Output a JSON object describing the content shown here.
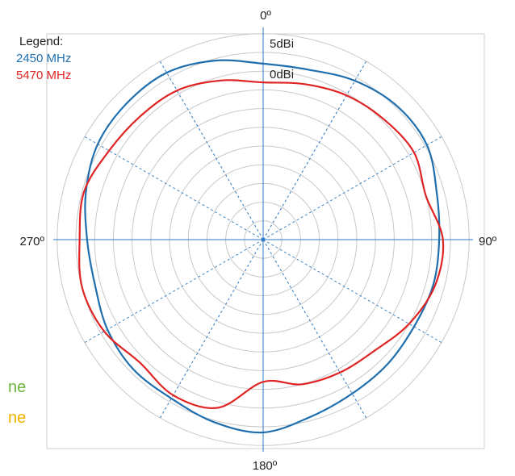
{
  "chart_data": {
    "type": "polar-line",
    "angle_labels": [
      "0º",
      "90º",
      "180º",
      "270º"
    ],
    "angle_direction": "clockwise",
    "angle_zero": "top",
    "ring_labels": [
      "5dBi",
      "0dBi"
    ],
    "ring_count": 11,
    "spoke_step_deg": 30,
    "grid": true,
    "legend": {
      "title": "Legend:",
      "position": "top-left",
      "entries": [
        {
          "name": "2450 MHz",
          "color": "#1f6fae"
        },
        {
          "name": "5470 MHz",
          "color": "#e02424"
        }
      ]
    },
    "series": [
      {
        "name": "2450 MHz",
        "color": "#1f6fae",
        "angle_deg": [
          0,
          15,
          30,
          45,
          60,
          75,
          90,
          105,
          120,
          135,
          150,
          165,
          180,
          195,
          210,
          225,
          240,
          255,
          270,
          285,
          300,
          315,
          330,
          345
        ],
        "radius_rings": [
          9.4,
          9.4,
          9.8,
          10.1,
          10.1,
          9.6,
          9.4,
          9.4,
          9.3,
          9.4,
          9.5,
          9.8,
          10.3,
          10.1,
          9.8,
          9.8,
          9.6,
          9.3,
          9.4,
          9.8,
          10.2,
          10.3,
          10.3,
          9.9
        ]
      },
      {
        "name": "5470 MHz",
        "color": "#e02424",
        "angle_deg": [
          0,
          15,
          30,
          45,
          60,
          75,
          90,
          105,
          120,
          135,
          150,
          165,
          180,
          195,
          210,
          225,
          240,
          255,
          270,
          285,
          300,
          315,
          330,
          345
        ],
        "radius_rings": [
          8.4,
          8.6,
          8.9,
          9.1,
          9.3,
          9.0,
          9.6,
          9.5,
          9.0,
          8.4,
          8.2,
          8.0,
          7.6,
          9.3,
          9.6,
          9.3,
          9.8,
          10.0,
          9.8,
          9.9,
          9.5,
          9.3,
          9.2,
          8.8
        ]
      }
    ]
  },
  "edge_fragments": [
    {
      "text": "ne",
      "color": "#6bb33a"
    },
    {
      "text": "ne",
      "color": "#f0b400"
    }
  ]
}
